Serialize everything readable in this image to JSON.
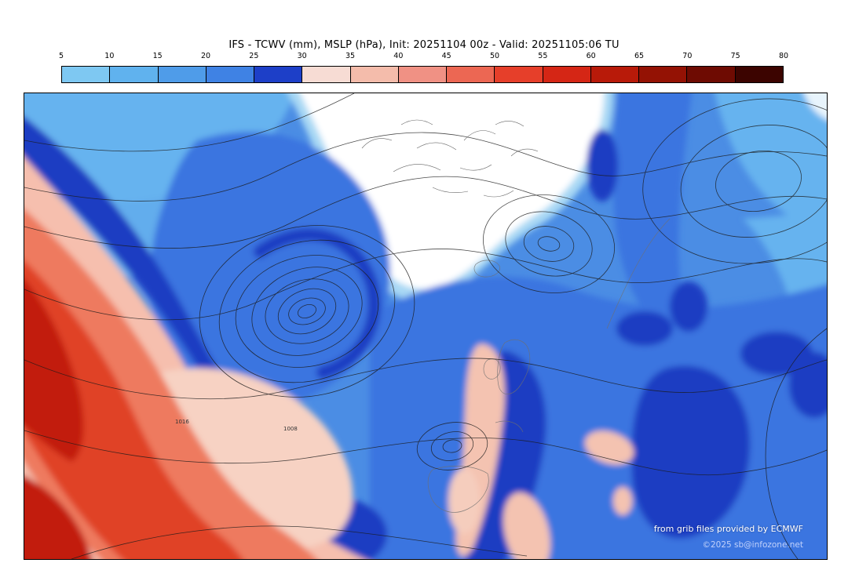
{
  "header": {
    "title": "IFS - TCWV (mm), MSLP (hPa), Init: 20251104 00z - Valid: 20251105:06 TU"
  },
  "colorbar": {
    "ticks": [
      "5",
      "10",
      "15",
      "20",
      "25",
      "30",
      "35",
      "40",
      "45",
      "50",
      "55",
      "60",
      "65",
      "70",
      "75",
      "80"
    ],
    "segments": [
      {
        "from": 5,
        "to": 10,
        "color": "#7ec8f2"
      },
      {
        "from": 10,
        "to": 15,
        "color": "#60b2ee"
      },
      {
        "from": 15,
        "to": 20,
        "color": "#4f9ce9"
      },
      {
        "from": 20,
        "to": 25,
        "color": "#3f82e4"
      },
      {
        "from": 25,
        "to": 30,
        "color": "#1d3fc8"
      },
      {
        "from": 30,
        "to": 35,
        "color": "#f7dcd4"
      },
      {
        "from": 35,
        "to": 40,
        "color": "#f4bcab"
      },
      {
        "from": 40,
        "to": 45,
        "color": "#f09184"
      },
      {
        "from": 45,
        "to": 50,
        "color": "#ec6753"
      },
      {
        "from": 50,
        "to": 55,
        "color": "#e63f2a"
      },
      {
        "from": 55,
        "to": 60,
        "color": "#d52615"
      },
      {
        "from": 60,
        "to": 65,
        "color": "#b81a09"
      },
      {
        "from": 65,
        "to": 70,
        "color": "#941204"
      },
      {
        "from": 70,
        "to": 75,
        "color": "#6e0b02"
      },
      {
        "from": 75,
        "to": 80,
        "color": "#3c0400"
      }
    ]
  },
  "map": {
    "pressure_labels": [
      "1016",
      "1008"
    ],
    "attribution_line1": "from grib files provided by ECMWF",
    "attribution_line2": "©2025 sb@infozone.net"
  },
  "chart_data": {
    "type": "heatmap",
    "title": "IFS - TCWV (mm), MSLP (hPa), Init: 20251104 00z - Valid: 20251105:06 TU",
    "model": "IFS",
    "shaded_field": "TCWV (mm)",
    "contour_field": "MSLP (hPa)",
    "init": "20251104 00z",
    "valid": "20251105:06 TU",
    "colorbar_ticks": [
      5,
      10,
      15,
      20,
      25,
      30,
      35,
      40,
      45,
      50,
      55,
      60,
      65,
      70,
      75,
      80
    ],
    "colorbar_colors": [
      "#7ec8f2",
      "#60b2ee",
      "#4f9ce9",
      "#3f82e4",
      "#1d3fc8",
      "#f7dcd4",
      "#f4bcab",
      "#f09184",
      "#ec6753",
      "#e63f2a",
      "#d52615",
      "#b81a09",
      "#941204",
      "#6e0b02",
      "#3c0400"
    ],
    "contour_labels_visible": [
      "1016",
      "1008"
    ],
    "legend_position": "top",
    "grid": false
  }
}
